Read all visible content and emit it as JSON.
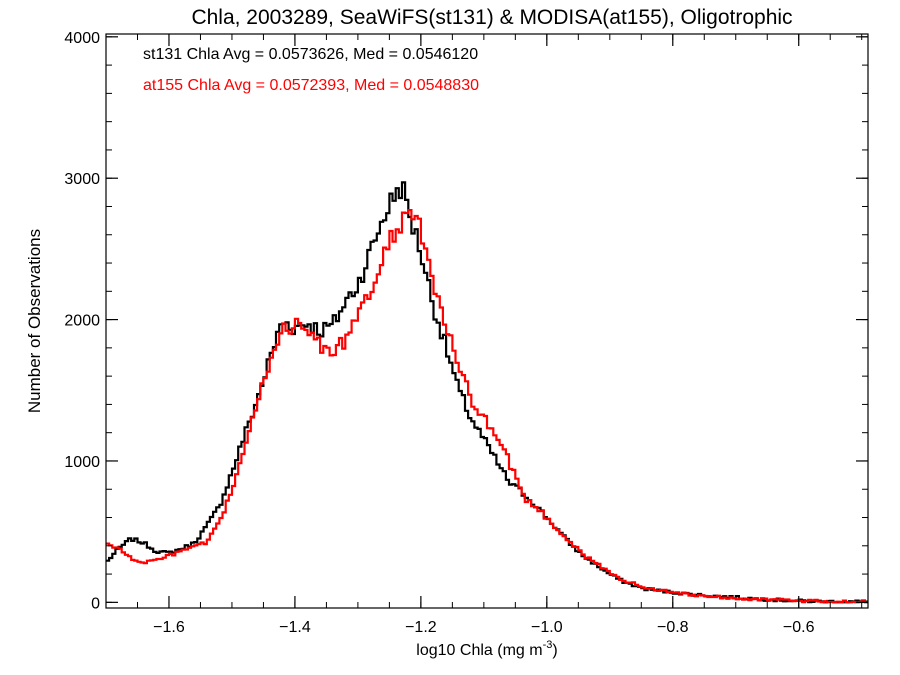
{
  "chart_data": {
    "type": "line",
    "title": "Chla, 2003289, SeaWiFS(st131) & MODISA(at155), Oligotrophic",
    "xlabel": "log10 Chla (mg m",
    "xlabel_superscript": "-3",
    "xlabel_suffix": ")",
    "ylabel": "Number of Observations",
    "xlim": [
      -1.7,
      -0.49
    ],
    "ylim": [
      -40,
      4020
    ],
    "grid": false,
    "x_ticks": [
      {
        "value": -1.6,
        "label": "−1.6"
      },
      {
        "value": -1.4,
        "label": "−1.4"
      },
      {
        "value": -1.2,
        "label": "−1.2"
      },
      {
        "value": -1.0,
        "label": "−1.0"
      },
      {
        "value": -0.8,
        "label": "−0.8"
      },
      {
        "value": -0.6,
        "label": "−0.6"
      }
    ],
    "y_ticks": [
      {
        "value": 0,
        "label": "0"
      },
      {
        "value": 1000,
        "label": "1000"
      },
      {
        "value": 2000,
        "label": "2000"
      },
      {
        "value": 3000,
        "label": "3000"
      },
      {
        "value": 4000,
        "label": "4000"
      }
    ],
    "series": [
      {
        "name": "st131 Chla Avg = 0.0573626, Med = 0.0546120",
        "color": "#000000",
        "x": [
          -1.7,
          -1.68,
          -1.66,
          -1.64,
          -1.62,
          -1.6,
          -1.58,
          -1.56,
          -1.54,
          -1.52,
          -1.5,
          -1.48,
          -1.46,
          -1.44,
          -1.42,
          -1.4,
          -1.38,
          -1.36,
          -1.34,
          -1.32,
          -1.3,
          -1.28,
          -1.26,
          -1.24,
          -1.23,
          -1.22,
          -1.2,
          -1.18,
          -1.16,
          -1.14,
          -1.12,
          -1.1,
          -1.08,
          -1.06,
          -1.04,
          -1.02,
          -1.0,
          -0.98,
          -0.96,
          -0.94,
          -0.92,
          -0.9,
          -0.88,
          -0.85,
          -0.8,
          -0.75,
          -0.7,
          -0.65,
          -0.6,
          -0.55,
          -0.5
        ],
        "y": [
          280,
          380,
          450,
          420,
          360,
          350,
          380,
          420,
          540,
          680,
          920,
          1180,
          1430,
          1720,
          1990,
          1940,
          1980,
          1920,
          1960,
          2120,
          2250,
          2480,
          2720,
          2900,
          2950,
          2770,
          2480,
          2100,
          1800,
          1500,
          1300,
          1150,
          1000,
          850,
          780,
          700,
          600,
          500,
          400,
          320,
          260,
          200,
          150,
          100,
          70,
          50,
          35,
          20,
          10,
          5,
          5
        ]
      },
      {
        "name": "at155 Chla Avg = 0.0572393, Med = 0.0548830",
        "color": "#ff0000",
        "x": [
          -1.7,
          -1.68,
          -1.66,
          -1.64,
          -1.62,
          -1.6,
          -1.58,
          -1.56,
          -1.54,
          -1.52,
          -1.5,
          -1.48,
          -1.46,
          -1.44,
          -1.42,
          -1.4,
          -1.38,
          -1.36,
          -1.34,
          -1.32,
          -1.3,
          -1.28,
          -1.26,
          -1.24,
          -1.22,
          -1.21,
          -1.2,
          -1.18,
          -1.16,
          -1.14,
          -1.12,
          -1.1,
          -1.08,
          -1.06,
          -1.04,
          -1.02,
          -1.0,
          -0.98,
          -0.96,
          -0.94,
          -0.92,
          -0.9,
          -0.88,
          -0.85,
          -0.8,
          -0.75,
          -0.7,
          -0.65,
          -0.6,
          -0.55,
          -0.5
        ],
        "y": [
          420,
          380,
          310,
          280,
          300,
          330,
          360,
          400,
          420,
          560,
          800,
          1080,
          1400,
          1700,
          1960,
          1950,
          1930,
          1820,
          1780,
          1850,
          2000,
          2200,
          2420,
          2640,
          2780,
          2760,
          2600,
          2250,
          1950,
          1650,
          1440,
          1300,
          1150,
          1000,
          760,
          680,
          600,
          500,
          420,
          330,
          270,
          210,
          160,
          110,
          70,
          45,
          30,
          20,
          10,
          5,
          5
        ]
      }
    ]
  }
}
